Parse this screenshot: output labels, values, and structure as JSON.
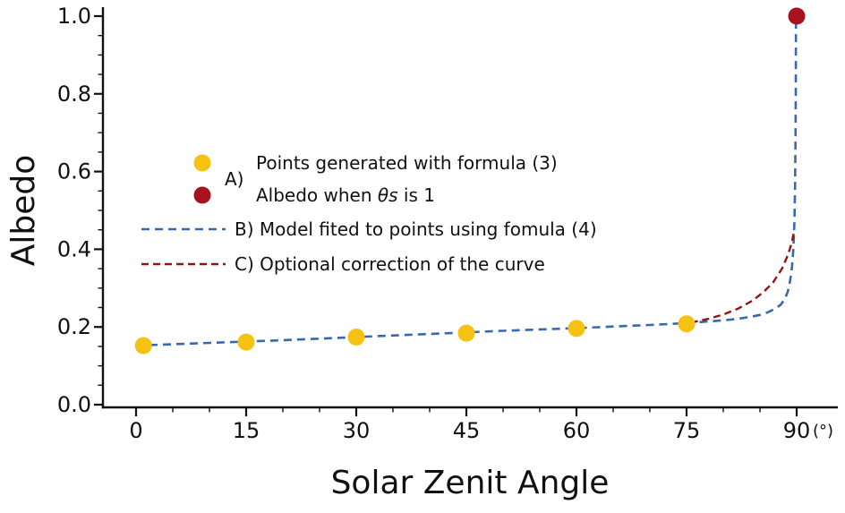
{
  "figure": {
    "background": "#ffffff"
  },
  "legend": {
    "group_label": "A)",
    "item2_pre": "Albedo when ",
    "item2_var": "θs",
    "item2_post": " is 1"
  },
  "chart_data": {
    "type": "line",
    "title": "",
    "xlabel": "Solar Zenit Angle",
    "ylabel": "Albedo",
    "x_unit_label": "(°)",
    "xlim": [
      -4.5,
      95
    ],
    "ylim": [
      0.0,
      1.02
    ],
    "xticks": [
      0,
      15,
      30,
      45,
      60,
      75,
      90
    ],
    "yticks": [
      0,
      0.2,
      0.4,
      0.6,
      0.8,
      1
    ],
    "x_minor_step": 5,
    "y_minor_step": 0.05,
    "grid": false,
    "legend_position": "upper-left-inside",
    "series": [
      {
        "id": "generated-points",
        "name": "Points generated with formula (3)",
        "type": "scatter",
        "color": "#f5c211",
        "marker_size": 9.5,
        "x": [
          1,
          15,
          30,
          45,
          60,
          75
        ],
        "y": [
          0.152,
          0.161,
          0.174,
          0.184,
          0.196,
          0.208
        ]
      },
      {
        "id": "albedo-theta1-point",
        "name": "Albedo when θs is 1",
        "type": "scatter",
        "color": "#a8121e",
        "marker_size": 9.5,
        "x": [
          90
        ],
        "y": [
          1.0
        ]
      },
      {
        "id": "model-fit-line",
        "name": "B) Model fited to points using fomula (4)",
        "type": "line",
        "color": "#3a68b0",
        "dash": [
          9,
          6
        ],
        "width": 2.6,
        "points": [
          [
            0,
            0.152
          ],
          [
            10,
            0.159
          ],
          [
            20,
            0.166
          ],
          [
            30,
            0.174
          ],
          [
            40,
            0.182
          ],
          [
            50,
            0.19
          ],
          [
            60,
            0.197
          ],
          [
            70,
            0.205
          ],
          [
            75,
            0.21
          ],
          [
            80,
            0.217
          ],
          [
            82,
            0.221
          ],
          [
            84,
            0.227
          ],
          [
            85,
            0.231
          ],
          [
            86,
            0.237
          ],
          [
            87,
            0.246
          ],
          [
            87.8,
            0.257
          ],
          [
            88.4,
            0.272
          ],
          [
            88.8,
            0.292
          ],
          [
            89.1,
            0.318
          ],
          [
            89.35,
            0.352
          ],
          [
            89.55,
            0.4
          ],
          [
            89.7,
            0.47
          ],
          [
            89.78,
            0.56
          ],
          [
            89.84,
            0.68
          ],
          [
            89.88,
            0.8
          ],
          [
            89.9,
            1.0
          ]
        ]
      },
      {
        "id": "correction-line",
        "name": "C) Optional correction of the curve",
        "type": "line",
        "color": "#8f1414",
        "dash": [
          8,
          5
        ],
        "width": 2.4,
        "points": [
          [
            74,
            0.207
          ],
          [
            76,
            0.213
          ],
          [
            78,
            0.221
          ],
          [
            80,
            0.232
          ],
          [
            82,
            0.247
          ],
          [
            84,
            0.268
          ],
          [
            85.5,
            0.29
          ],
          [
            86.8,
            0.315
          ],
          [
            88,
            0.35
          ],
          [
            88.8,
            0.385
          ],
          [
            89.3,
            0.415
          ],
          [
            89.7,
            0.45
          ]
        ]
      }
    ]
  }
}
